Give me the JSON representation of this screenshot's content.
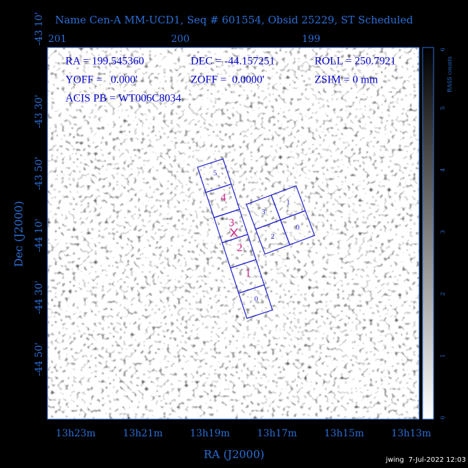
{
  "title": "Name Cen-A MM-UCD1, Seq # 601554, Obsid 25229, ST Scheduled",
  "top_axis": {
    "labels": [
      "201",
      "200",
      "199"
    ]
  },
  "left_axis": {
    "title": "Dec (J2000)",
    "labels": [
      "-43 10'",
      "-43 30'",
      "-43 50'",
      "-44 10'",
      "-44 30'",
      "-44 50'"
    ]
  },
  "bottom_axis": {
    "title": "RA (J2000)",
    "labels": [
      "13h23m",
      "13h21m",
      "13h19m",
      "13h17m",
      "13h15m",
      "13h13m"
    ]
  },
  "colorbar": {
    "title": "RASS counts",
    "labels": [
      "0",
      "1",
      "2",
      "3",
      "4",
      "5",
      "6"
    ]
  },
  "info": {
    "lines": [
      [
        "RA = 199.545360",
        "DEC = -44.157251",
        "ROLL = 250.7921"
      ],
      [
        "YOFF =   0.000'",
        "ZOFF =  0.0000'",
        "ZSIM = 0 mm"
      ],
      [
        "ACIS PB = WT006C8034"
      ]
    ]
  },
  "chips": {
    "strip": [
      "5",
      "4",
      "3",
      "2",
      "1",
      "0"
    ],
    "array": [
      "3",
      "1",
      "2",
      "0"
    ]
  },
  "footer": "jwing  7-Jul-2022 12:03"
}
